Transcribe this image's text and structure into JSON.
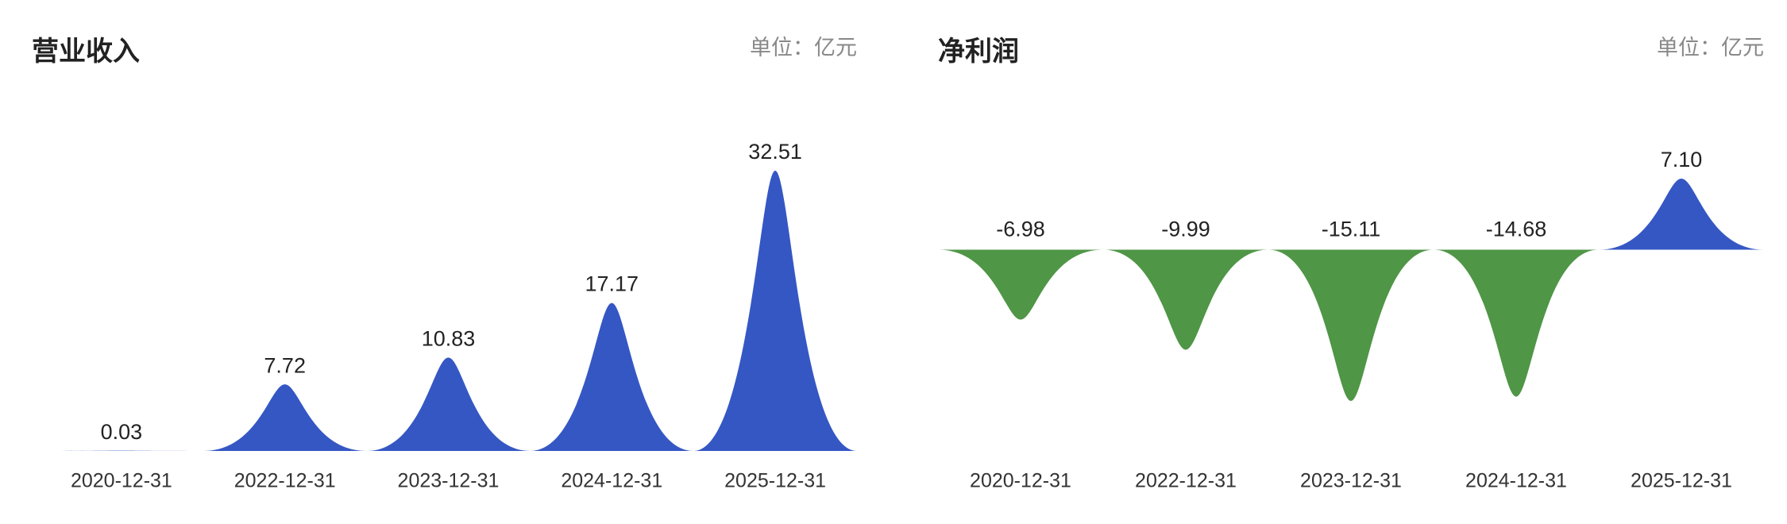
{
  "chart_data": [
    {
      "type": "bar",
      "title": "营业收入",
      "unit_label": "单位：亿元",
      "categories": [
        "2020-12-31",
        "2022-12-31",
        "2023-12-31",
        "2024-12-31",
        "2025-12-31"
      ],
      "values": [
        0.03,
        7.72,
        10.83,
        17.17,
        32.51
      ],
      "color": "#3557c4"
    },
    {
      "type": "bar",
      "title": "净利润",
      "unit_label": "单位：亿元",
      "categories": [
        "2020-12-31",
        "2022-12-31",
        "2023-12-31",
        "2024-12-31",
        "2025-12-31"
      ],
      "values": [
        -6.98,
        -9.99,
        -15.11,
        -14.68,
        7.1
      ],
      "value_labels": [
        "-6.98",
        "-9.99",
        "-15.11",
        "-14.68",
        "7.10"
      ],
      "color": "#3557c4",
      "negative_color": "#4f9646"
    }
  ]
}
